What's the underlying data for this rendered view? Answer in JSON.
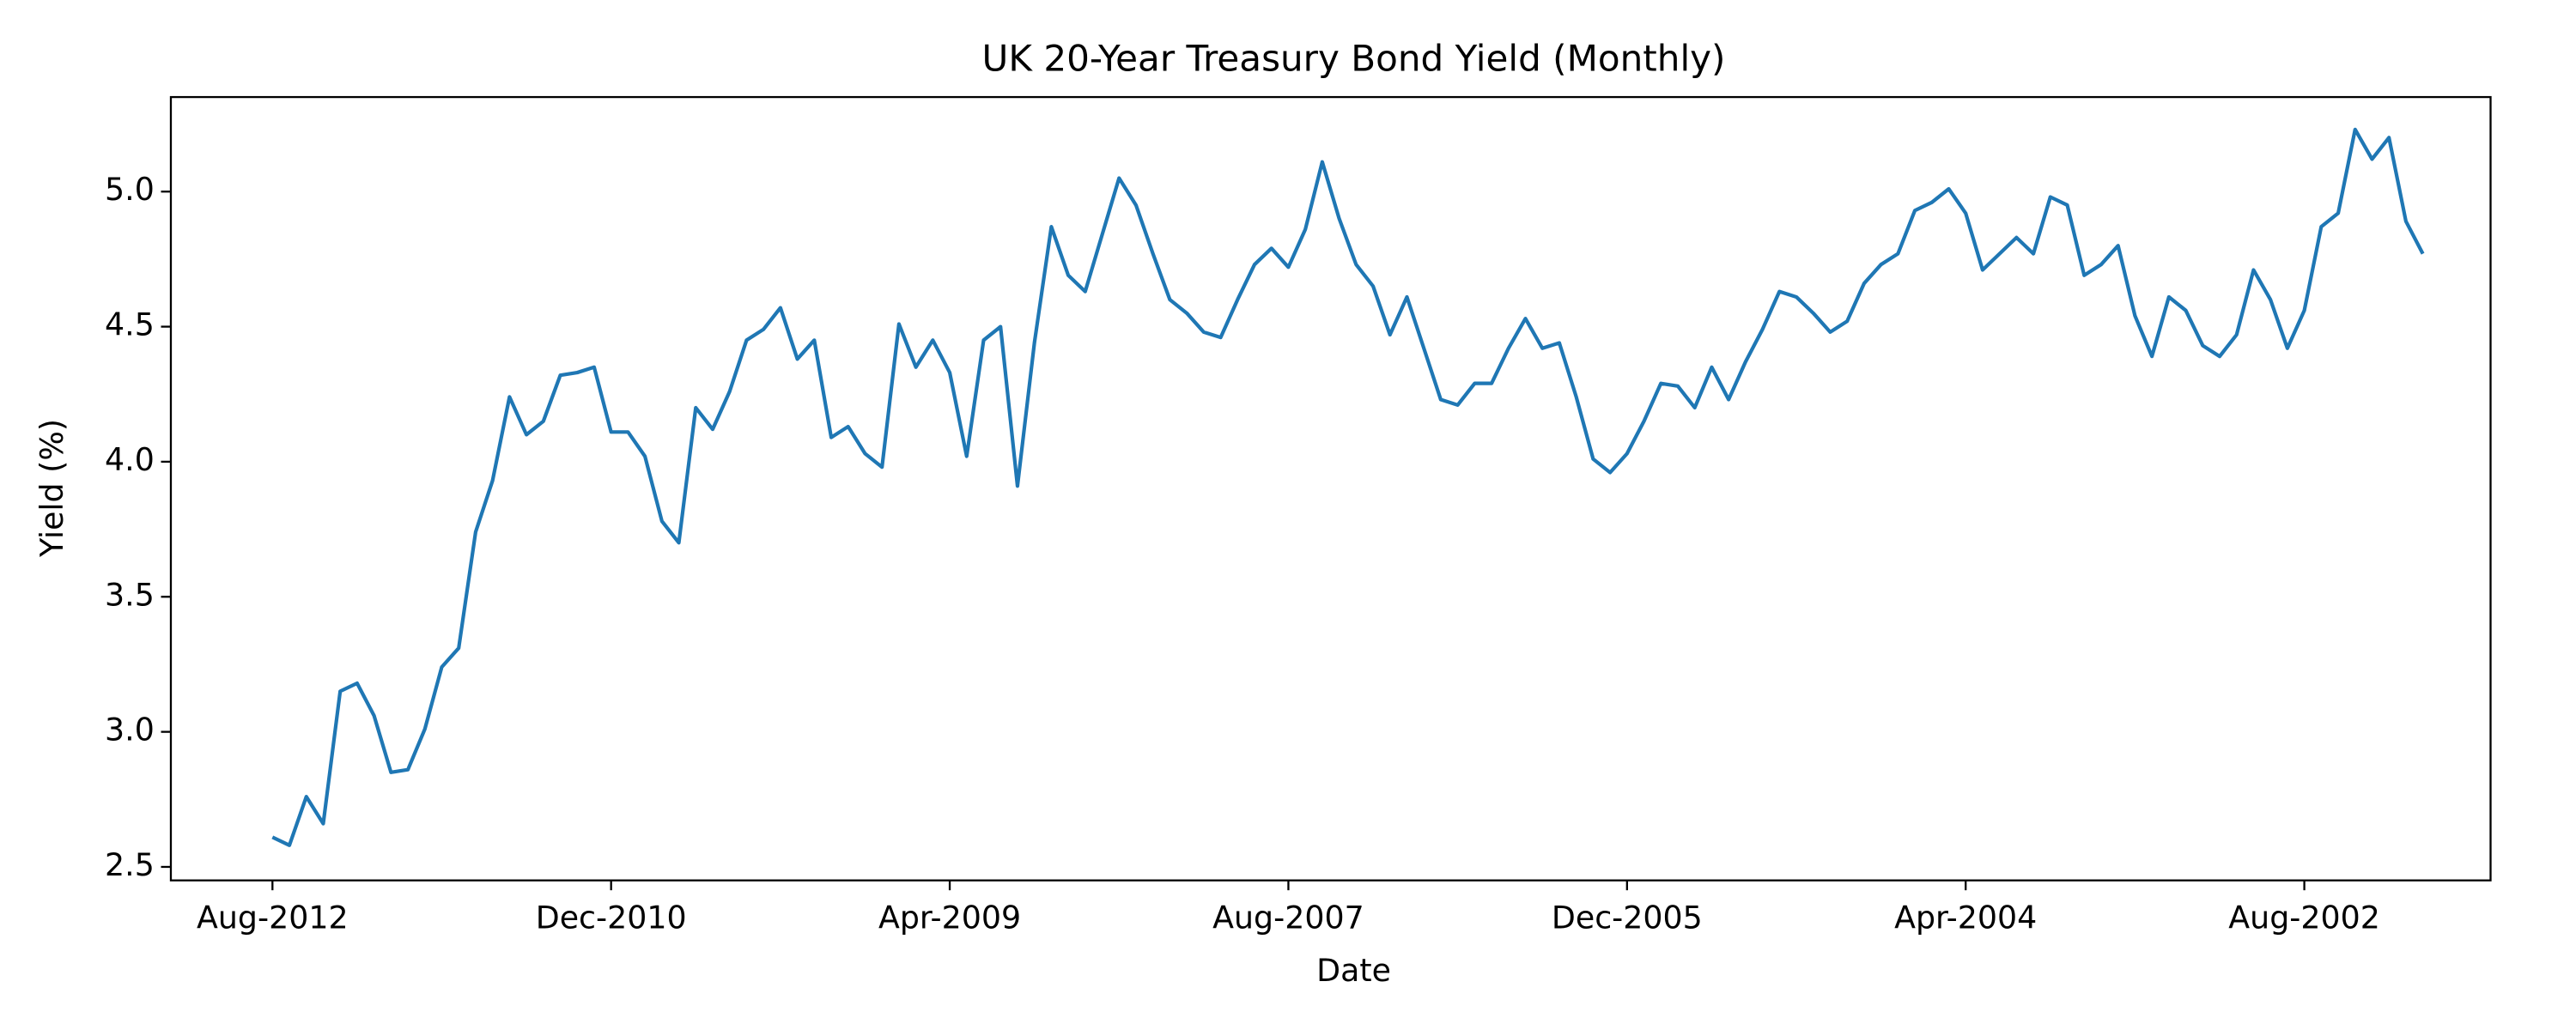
{
  "chart_data": {
    "type": "line",
    "title": "UK 20-Year Treasury Bond Yield (Monthly)",
    "xlabel": "Date",
    "ylabel": "Yield (%)",
    "color": "#1f77b4",
    "x": [
      "2012-08",
      "2012-07",
      "2012-06",
      "2012-05",
      "2012-04",
      "2012-03",
      "2012-02",
      "2012-01",
      "2011-12",
      "2011-11",
      "2011-10",
      "2011-09",
      "2011-08",
      "2011-07",
      "2011-06",
      "2011-05",
      "2011-04",
      "2011-03",
      "2011-02",
      "2011-01",
      "2010-12",
      "2010-11",
      "2010-10",
      "2010-09",
      "2010-08",
      "2010-07",
      "2010-06",
      "2010-05",
      "2010-04",
      "2010-03",
      "2010-02",
      "2010-01",
      "2009-12",
      "2009-11",
      "2009-10",
      "2009-09",
      "2009-08",
      "2009-07",
      "2009-06",
      "2009-05",
      "2009-04",
      "2009-03",
      "2009-02",
      "2009-01",
      "2008-12",
      "2008-11",
      "2008-10",
      "2008-09",
      "2008-08",
      "2008-07",
      "2008-06",
      "2008-05",
      "2008-04",
      "2008-03",
      "2008-02",
      "2008-01",
      "2007-12",
      "2007-11",
      "2007-10",
      "2007-09",
      "2007-08",
      "2007-07",
      "2007-06",
      "2007-05",
      "2007-04",
      "2007-03",
      "2007-02",
      "2007-01",
      "2006-12",
      "2006-11",
      "2006-10",
      "2006-09",
      "2006-08",
      "2006-07",
      "2006-06",
      "2006-05",
      "2006-04",
      "2006-03",
      "2006-02",
      "2006-01",
      "2005-12",
      "2005-11",
      "2005-10",
      "2005-09",
      "2005-08",
      "2005-07",
      "2005-06",
      "2005-05",
      "2005-04",
      "2005-03",
      "2005-02",
      "2005-01",
      "2004-12",
      "2004-11",
      "2004-10",
      "2004-09",
      "2004-08",
      "2004-07",
      "2004-06",
      "2004-05",
      "2004-04",
      "2004-03",
      "2004-02",
      "2004-01",
      "2003-12",
      "2003-11",
      "2003-10",
      "2003-09",
      "2003-08",
      "2003-07",
      "2003-06",
      "2003-05",
      "2003-04",
      "2003-03",
      "2003-02",
      "2003-01",
      "2002-12",
      "2002-11",
      "2002-10",
      "2002-09",
      "2002-08",
      "2002-07",
      "2002-06",
      "2002-05",
      "2002-04",
      "2002-03",
      "2002-02",
      "2002-01"
    ],
    "values": [
      2.61,
      2.58,
      2.76,
      2.66,
      3.15,
      3.18,
      3.06,
      2.85,
      2.86,
      3.01,
      3.24,
      3.31,
      3.74,
      3.93,
      4.24,
      4.1,
      4.15,
      4.32,
      4.33,
      4.35,
      4.11,
      4.11,
      4.02,
      3.78,
      3.7,
      4.2,
      4.12,
      4.26,
      4.45,
      4.49,
      4.57,
      4.38,
      4.45,
      4.09,
      4.13,
      4.03,
      3.98,
      4.51,
      4.35,
      4.45,
      4.33,
      4.02,
      4.45,
      4.5,
      3.91,
      4.44,
      4.87,
      4.69,
      4.63,
      4.84,
      5.05,
      4.95,
      4.77,
      4.6,
      4.55,
      4.48,
      4.46,
      4.6,
      4.73,
      4.79,
      4.72,
      4.86,
      5.11,
      4.9,
      4.73,
      4.65,
      4.47,
      4.61,
      4.42,
      4.23,
      4.21,
      4.29,
      4.29,
      4.42,
      4.53,
      4.42,
      4.44,
      4.24,
      4.01,
      3.96,
      4.03,
      4.15,
      4.29,
      4.28,
      4.2,
      4.35,
      4.23,
      4.37,
      4.49,
      4.63,
      4.61,
      4.55,
      4.48,
      4.52,
      4.66,
      4.73,
      4.77,
      4.93,
      4.96,
      5.01,
      4.92,
      4.71,
      4.77,
      4.83,
      4.77,
      4.98,
      4.95,
      4.69,
      4.73,
      4.8,
      4.54,
      4.39,
      4.61,
      4.56,
      4.43,
      4.39,
      4.47,
      4.71,
      4.6,
      4.42,
      4.56,
      4.87,
      4.92,
      5.23,
      5.12,
      5.2,
      4.89,
      4.77
    ],
    "xlim": [
      "2013-02",
      "2001-09"
    ],
    "xticks": [
      {
        "value": "2012-08",
        "label": "Aug-2012"
      },
      {
        "value": "2010-12",
        "label": "Dec-2010"
      },
      {
        "value": "2009-04",
        "label": "Apr-2009"
      },
      {
        "value": "2007-08",
        "label": "Aug-2007"
      },
      {
        "value": "2005-12",
        "label": "Dec-2005"
      },
      {
        "value": "2004-04",
        "label": "Apr-2004"
      },
      {
        "value": "2002-08",
        "label": "Aug-2002"
      }
    ],
    "ylim": [
      2.45,
      5.35
    ],
    "yticks": [
      2.5,
      {
        "value": 3,
        "label": "3.0"
      },
      3.5,
      {
        "value": 4,
        "label": "4.0"
      },
      4.5,
      {
        "value": 5,
        "label": "5.0"
      }
    ],
    "grid": false
  }
}
